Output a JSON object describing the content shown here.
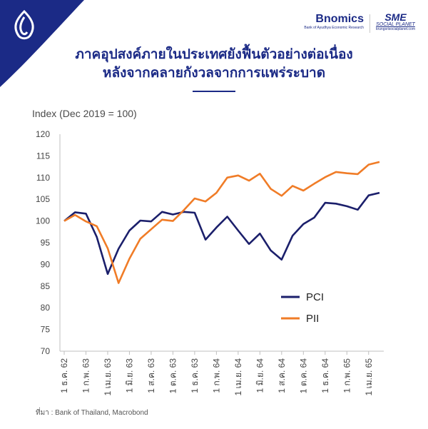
{
  "title_line1": "ภาคอุปสงค์ภายในประเทศยังฟื้นตัวอย่างต่อเนื่อง",
  "title_line2": "หลังจากคลายกังวลจากการแพร่ระบาด",
  "brand": {
    "bnomics": "Bnomics",
    "bnomics_tag": "Bank of Ayudhya Economic Research",
    "sme": "SME",
    "sme_sub": "SOCIAL PLANET",
    "sme_url": "krungsrisocialplanet.com"
  },
  "source": "ที่มา : Bank of Thailand, Macrobond",
  "colors": {
    "PCI": "#1b1f6b",
    "PII": "#f07c27",
    "title": "#1b2a86",
    "corner": "#1b2a86"
  },
  "chart_data": {
    "type": "line",
    "ylabel": "Index (Dec 2019 = 100)",
    "ylim": [
      70,
      120
    ],
    "yticks": [
      70,
      75,
      80,
      85,
      90,
      95,
      100,
      105,
      110,
      115,
      120
    ],
    "grid": false,
    "legend_position": "right",
    "x": [
      "Dec-19",
      "Jan-20",
      "Feb-20",
      "Mar-20",
      "Apr-20",
      "May-20",
      "Jun-20",
      "Jul-20",
      "Aug-20",
      "Sep-20",
      "Oct-20",
      "Nov-20",
      "Dec-20",
      "Jan-21",
      "Feb-21",
      "Mar-21",
      "Apr-21",
      "May-21",
      "Jun-21",
      "Jul-21",
      "Aug-21",
      "Sep-21",
      "Oct-21",
      "Nov-21",
      "Dec-21",
      "Jan-22",
      "Feb-22",
      "Mar-22",
      "Apr-22",
      "May-22"
    ],
    "x_tick_labels": [
      {
        "index": 0,
        "label": "1 ธ.ค. 62"
      },
      {
        "index": 2,
        "label": "1 ก.พ. 63"
      },
      {
        "index": 4,
        "label": "1 เม.ย. 63"
      },
      {
        "index": 6,
        "label": "1 มิ.ย. 63"
      },
      {
        "index": 8,
        "label": "1 ส.ค. 63"
      },
      {
        "index": 10,
        "label": "1 ต.ค. 63"
      },
      {
        "index": 12,
        "label": "1 ธ.ค. 63"
      },
      {
        "index": 14,
        "label": "1 ก.พ. 64"
      },
      {
        "index": 16,
        "label": "1 เม.ย. 64"
      },
      {
        "index": 18,
        "label": "1 มิ.ย. 64"
      },
      {
        "index": 20,
        "label": "1 ส.ค. 64"
      },
      {
        "index": 22,
        "label": "1 ต.ค. 64"
      },
      {
        "index": 24,
        "label": "1 ธ.ค. 64"
      },
      {
        "index": 26,
        "label": "1 ก.พ. 65"
      },
      {
        "index": 28,
        "label": "1 เม.ย. 65"
      }
    ],
    "series": [
      {
        "name": "PCI",
        "values": [
          100,
          102,
          101.7,
          96.3,
          87.8,
          93.6,
          97.8,
          100.1,
          99.9,
          102.1,
          101.5,
          102.1,
          101.9,
          95.7,
          98.5,
          101.0,
          97.8,
          94.7,
          97.1,
          93.2,
          91.1,
          96.6,
          99.3,
          100.8,
          104.2,
          104.0,
          103.4,
          102.6,
          105.9,
          106.5
        ]
      },
      {
        "name": "PII",
        "values": [
          100,
          101.4,
          99.9,
          98.8,
          93.7,
          85.7,
          91.3,
          95.9,
          98.1,
          100.3,
          100.0,
          102.5,
          105.2,
          104.5,
          106.5,
          110.0,
          110.5,
          109.3,
          110.9,
          107.4,
          105.8,
          108.1,
          107.0,
          108.6,
          110.1,
          111.3,
          111.0,
          110.8,
          113.0,
          113.6
        ]
      }
    ]
  }
}
